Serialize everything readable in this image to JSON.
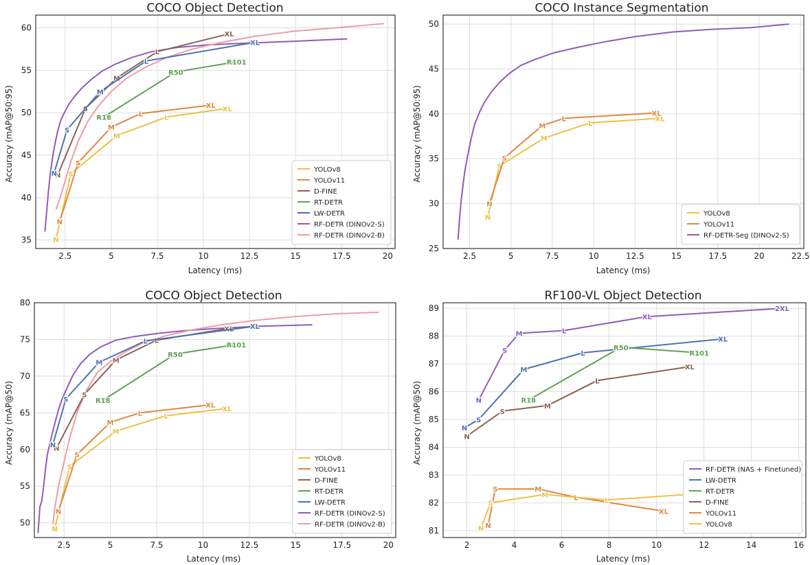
{
  "colors": {
    "YOLOv8": "#ECC145",
    "YOLOv11": "#DD8741",
    "D-FINE": "#8C6250",
    "RT-DETR": "#5FA155",
    "LW-DETR": "#4C72B0",
    "RF-DETR-S": "#8D5CBA",
    "RF-DETR-B": "#F09CA7"
  },
  "chart_data": [
    {
      "type": "line",
      "title": "COCO Object Detection",
      "xlabel": "Latency (ms)",
      "ylabel": "Accuracy (mAP@50:95)",
      "xlim": [
        0.9,
        20.4
      ],
      "ylim": [
        34.0,
        61.5
      ],
      "xticks": [
        2.5,
        5.0,
        7.5,
        10.0,
        12.5,
        15.0,
        17.5,
        20.0
      ],
      "yticks": [
        35,
        40,
        45,
        50,
        55,
        60
      ],
      "grid": true,
      "legend_position": "lower-right",
      "series": [
        {
          "name": "YOLOv8",
          "color_key": "YOLOv8",
          "labels": [
            "N",
            "S",
            "M",
            "L",
            "XL"
          ],
          "x": [
            2.0,
            2.8,
            5.3,
            8.0,
            11.3
          ],
          "y": [
            35.1,
            42.8,
            47.3,
            49.5,
            50.5
          ]
        },
        {
          "name": "YOLOv11",
          "color_key": "YOLOv11",
          "labels": [
            "N",
            "S",
            "M",
            "L",
            "XL"
          ],
          "x": [
            2.2,
            3.2,
            5.0,
            6.6,
            10.4
          ],
          "y": [
            37.2,
            44.1,
            48.3,
            49.9,
            50.9
          ]
        },
        {
          "name": "D-FINE",
          "color_key": "D-FINE",
          "labels": [
            "N",
            "S",
            "M",
            "L",
            "XL"
          ],
          "x": [
            2.1,
            3.6,
            5.3,
            7.5,
            11.4
          ],
          "y": [
            42.7,
            50.5,
            54.1,
            57.2,
            59.3
          ]
        },
        {
          "name": "RT-DETR",
          "color_key": "RT-DETR",
          "labels": [
            "R18",
            "R50",
            "R101"
          ],
          "x": [
            4.6,
            8.5,
            11.8
          ],
          "y": [
            49.5,
            54.8,
            56.0
          ]
        },
        {
          "name": "LW-DETR",
          "color_key": "LW-DETR",
          "labels": [
            "N",
            "S",
            "M",
            "L",
            "XL"
          ],
          "x": [
            1.9,
            2.6,
            4.4,
            6.9,
            12.8
          ],
          "y": [
            42.9,
            48.0,
            52.5,
            56.1,
            58.3
          ]
        },
        {
          "name": "RF-DETR (DINOv2-S)",
          "color_key": "RF-DETR-S",
          "labels": [],
          "x": [
            1.4,
            1.5,
            1.6,
            1.7,
            1.8,
            1.9,
            2.0,
            2.1,
            2.2,
            2.3,
            2.5,
            2.7,
            3.0,
            3.4,
            3.9,
            4.5,
            5.2,
            6.1,
            7.2,
            8.6,
            10.3,
            12.4,
            14.8,
            17.8
          ],
          "y": [
            36.0,
            38.5,
            41.0,
            43.0,
            44.5,
            45.8,
            46.9,
            47.9,
            48.7,
            49.3,
            50.2,
            51.0,
            51.9,
            52.9,
            53.9,
            54.9,
            55.7,
            56.5,
            57.2,
            57.7,
            58.0,
            58.2,
            58.4,
            58.7
          ]
        },
        {
          "name": "RF-DETR (DINOv2-B)",
          "color_key": "RF-DETR-B",
          "labels": [],
          "x": [
            2.0,
            2.2,
            2.5,
            2.8,
            3.2,
            3.7,
            4.3,
            5.0,
            5.8,
            6.8,
            8.0,
            9.4,
            11.0,
            12.8,
            14.9,
            17.2,
            19.8
          ],
          "y": [
            38.6,
            39.8,
            42.0,
            44.2,
            46.6,
            48.9,
            50.8,
            52.5,
            54.0,
            55.3,
            56.5,
            57.5,
            58.3,
            59.0,
            59.6,
            60.0,
            60.5
          ]
        }
      ]
    },
    {
      "type": "line",
      "title": "COCO Instance Segmentation",
      "xlabel": "Latency (ms)",
      "ylabel": "Accuracy (mAP@50:95)",
      "xlim": [
        0.9,
        22.7
      ],
      "ylim": [
        25.0,
        51.0
      ],
      "xticks": [
        2.5,
        5.0,
        7.5,
        10.0,
        12.5,
        15.0,
        17.5,
        20.0,
        22.5
      ],
      "yticks": [
        25,
        30,
        35,
        40,
        45,
        50
      ],
      "grid": true,
      "legend_position": "lower-right",
      "series": [
        {
          "name": "YOLOv8",
          "color_key": "YOLOv8",
          "labels": [
            "N",
            "S",
            "M",
            "L",
            "XL"
          ],
          "x": [
            3.6,
            4.3,
            7.0,
            9.8,
            14.0
          ],
          "y": [
            28.5,
            34.2,
            37.3,
            39.0,
            39.5
          ]
        },
        {
          "name": "YOLOv11",
          "color_key": "YOLOv11",
          "labels": [
            "N",
            "S",
            "M",
            "L",
            "XL"
          ],
          "x": [
            3.7,
            4.6,
            6.9,
            8.2,
            13.8
          ],
          "y": [
            30.0,
            35.1,
            38.7,
            39.5,
            40.1
          ]
        },
        {
          "name": "RF-DETR-Seg (DINOv2-S)",
          "color_key": "RF-DETR-S",
          "labels": [],
          "x": [
            1.8,
            1.9,
            2.0,
            2.1,
            2.2,
            2.4,
            2.6,
            2.8,
            3.1,
            3.4,
            3.8,
            4.3,
            4.9,
            5.6,
            6.5,
            7.6,
            9.0,
            10.6,
            12.5,
            14.7,
            17.0,
            19.5,
            21.8
          ],
          "y": [
            26.0,
            28.5,
            30.5,
            32.0,
            33.5,
            35.5,
            37.3,
            38.8,
            40.2,
            41.3,
            42.4,
            43.5,
            44.5,
            45.4,
            46.1,
            46.8,
            47.4,
            48.0,
            48.6,
            49.1,
            49.4,
            49.6,
            50.0
          ]
        }
      ]
    },
    {
      "type": "line",
      "title": "COCO Object Detection",
      "xlabel": "Latency (ms)",
      "ylabel": "Accuracy (mAP@50)",
      "xlim": [
        0.9,
        20.4
      ],
      "ylim": [
        48.0,
        80.0
      ],
      "xticks": [
        2.5,
        5.0,
        7.5,
        10.0,
        12.5,
        15.0,
        17.5,
        20.0
      ],
      "yticks": [
        50,
        55,
        60,
        65,
        70,
        75,
        80
      ],
      "grid": true,
      "legend_position": "lower-right",
      "series": [
        {
          "name": "YOLOv8",
          "color_key": "YOLOv8",
          "labels": [
            "N",
            "S",
            "M",
            "L",
            "XL"
          ],
          "x": [
            2.0,
            2.8,
            5.3,
            8.0,
            11.3
          ],
          "y": [
            49.2,
            57.7,
            62.5,
            64.6,
            65.6
          ]
        },
        {
          "name": "YOLOv11",
          "color_key": "YOLOv11",
          "labels": [
            "N",
            "S",
            "M",
            "L",
            "XL"
          ],
          "x": [
            2.2,
            3.2,
            5.0,
            6.6,
            10.4
          ],
          "y": [
            51.6,
            59.3,
            63.7,
            65.0,
            66.1
          ]
        },
        {
          "name": "D-FINE",
          "color_key": "D-FINE",
          "labels": [
            "N",
            "S",
            "M",
            "L",
            "XL"
          ],
          "x": [
            2.1,
            3.6,
            5.3,
            7.5,
            11.4
          ],
          "y": [
            60.2,
            67.5,
            72.2,
            74.9,
            76.5
          ]
        },
        {
          "name": "RT-DETR",
          "color_key": "RT-DETR",
          "labels": [
            "R18",
            "R50",
            "R101"
          ],
          "x": [
            4.6,
            8.5,
            11.8
          ],
          "y": [
            66.7,
            73.0,
            74.3
          ]
        },
        {
          "name": "LW-DETR",
          "color_key": "LW-DETR",
          "labels": [
            "N",
            "S",
            "M",
            "L",
            "XL"
          ],
          "x": [
            1.9,
            2.6,
            4.4,
            6.9,
            12.8
          ],
          "y": [
            60.7,
            66.9,
            71.9,
            74.8,
            76.8
          ]
        },
        {
          "name": "RF-DETR (DINOv2-S)",
          "color_key": "RF-DETR-S",
          "labels": [],
          "x": [
            1.1,
            1.2,
            1.3,
            1.4,
            1.5,
            1.6,
            1.7,
            1.8,
            1.9,
            2.0,
            2.2,
            2.4,
            2.7,
            3.0,
            3.4,
            3.9,
            4.5,
            5.3,
            6.3,
            7.5,
            9.0,
            10.8,
            13.0,
            15.9
          ],
          "y": [
            48.6,
            52.2,
            53.0,
            55.0,
            57.3,
            59.3,
            60.4,
            61.5,
            62.5,
            63.5,
            65.4,
            66.9,
            68.6,
            70.2,
            71.7,
            73.0,
            74.0,
            74.9,
            75.4,
            75.8,
            76.2,
            76.5,
            76.8,
            77.0
          ]
        },
        {
          "name": "RF-DETR (DINOv2-B)",
          "color_key": "RF-DETR-B",
          "labels": [],
          "x": [
            1.9,
            2.0,
            2.2,
            2.5,
            2.8,
            3.2,
            3.7,
            4.3,
            5.0,
            5.8,
            6.8,
            8.0,
            9.4,
            11.0,
            12.8,
            14.9,
            17.2,
            19.5
          ],
          "y": [
            49.8,
            52.0,
            55.0,
            58.3,
            61.5,
            65.0,
            68.0,
            70.5,
            72.0,
            73.3,
            74.6,
            75.5,
            76.3,
            77.0,
            77.6,
            78.1,
            78.5,
            78.7
          ]
        }
      ]
    },
    {
      "type": "line",
      "title": "RF100-VL Object Detection",
      "xlabel": "Latency (ms)",
      "ylabel": "Accuracy (mAP@50)",
      "xlim": [
        1.0,
        16.3
      ],
      "ylim": [
        80.75,
        89.2
      ],
      "xticks": [
        2,
        4,
        6,
        8,
        10,
        12,
        14,
        16
      ],
      "yticks": [
        81,
        82,
        83,
        84,
        85,
        86,
        87,
        88,
        89
      ],
      "grid": true,
      "legend_position": "lower-right",
      "series": [
        {
          "name": "RF-DETR (NAS + Finetuned)",
          "color_key": "RF-DETR-S",
          "labels": [
            "N",
            "S",
            "M",
            "L",
            "XL",
            "2XL"
          ],
          "x": [
            2.5,
            3.6,
            4.2,
            6.1,
            9.6,
            15.3
          ],
          "y": [
            85.7,
            87.5,
            88.1,
            88.2,
            88.7,
            89.0
          ]
        },
        {
          "name": "LW-DETR",
          "color_key": "LW-DETR",
          "labels": [
            "N",
            "S",
            "M",
            "L",
            "XL"
          ],
          "x": [
            1.9,
            2.5,
            4.4,
            6.9,
            12.8
          ],
          "y": [
            84.7,
            85.0,
            86.8,
            87.4,
            87.9
          ]
        },
        {
          "name": "RT-DETR",
          "color_key": "RT-DETR",
          "labels": [
            "R18",
            "R50",
            "R101"
          ],
          "x": [
            4.6,
            8.5,
            11.8
          ],
          "y": [
            85.7,
            87.6,
            87.4
          ]
        },
        {
          "name": "D-FINE",
          "color_key": "D-FINE",
          "labels": [
            "N",
            "S",
            "M",
            "L",
            "XL"
          ],
          "x": [
            2.0,
            3.5,
            5.4,
            7.5,
            11.4
          ],
          "y": [
            84.4,
            85.3,
            85.5,
            86.4,
            86.9
          ]
        },
        {
          "name": "YOLOv11",
          "color_key": "YOLOv11",
          "labels": [
            "N",
            "S",
            "M",
            "L",
            "XL"
          ],
          "x": [
            2.9,
            3.2,
            5.0,
            6.6,
            10.3
          ],
          "y": [
            81.2,
            82.5,
            82.5,
            82.2,
            81.7
          ]
        },
        {
          "name": "YOLOv8",
          "color_key": "YOLOv8",
          "labels": [
            "N",
            "S",
            "M",
            "L",
            "XL"
          ],
          "x": [
            2.6,
            3.0,
            5.3,
            7.9,
            11.3
          ],
          "y": [
            81.1,
            82.0,
            82.3,
            82.1,
            82.3
          ]
        }
      ]
    }
  ],
  "panels": [
    {
      "title": "COCO Object Detection",
      "xlabel": "Latency (ms)",
      "ylabel": "Accuracy (mAP@50:95)"
    },
    {
      "title": "COCO Instance Segmentation",
      "xlabel": "Latency (ms)",
      "ylabel": "Accuracy (mAP@50:95)"
    },
    {
      "title": "COCO Object Detection",
      "xlabel": "Latency (ms)",
      "ylabel": "Accuracy (mAP@50)"
    },
    {
      "title": "RF100-VL Object Detection",
      "xlabel": "Latency (ms)",
      "ylabel": "Accuracy (mAP@50)"
    }
  ]
}
